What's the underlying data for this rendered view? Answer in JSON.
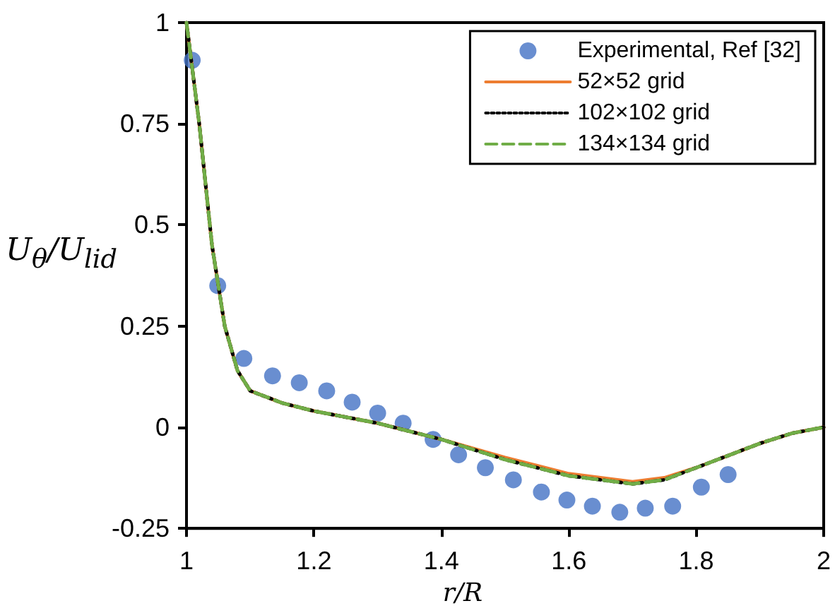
{
  "chart_data": {
    "type": "line",
    "xlabel": "r/R",
    "ylabel": "U$_{θ}$/U$_{lid}$",
    "xlim": [
      1,
      2
    ],
    "xticks": [
      1,
      1.2,
      1.4,
      1.6,
      1.8,
      2
    ],
    "ylim": [
      -0.25,
      1
    ],
    "yticks": [
      -0.25,
      0,
      0.25,
      0.5,
      0.75,
      1
    ],
    "grid": false,
    "legend": "top right",
    "series": [
      {
        "name": "Experimental, Ref [32]",
        "type": "scatter",
        "marker": "circle",
        "color": "#4472c4",
        "x": [
          1.009,
          1.049,
          1.09,
          1.135,
          1.177,
          1.22,
          1.26,
          1.3,
          1.34,
          1.387,
          1.427,
          1.469,
          1.513,
          1.557,
          1.597,
          1.637,
          1.68,
          1.72,
          1.763,
          1.808,
          1.85
        ],
        "values": [
          0.907,
          0.35,
          0.17,
          0.127,
          0.11,
          0.09,
          0.062,
          0.035,
          0.01,
          -0.03,
          -0.068,
          -0.1,
          -0.13,
          -0.16,
          -0.18,
          -0.195,
          -0.21,
          -0.2,
          -0.195,
          -0.148,
          -0.117
        ]
      },
      {
        "name": "52×52 grid",
        "marker": "none",
        "line_style": "solid",
        "color": "#ed7d31",
        "x": [
          1,
          1.02,
          1.04,
          1.06,
          1.08,
          1.1,
          1.15,
          1.2,
          1.3,
          1.4,
          1.5,
          1.6,
          1.7,
          1.75,
          1.8,
          1.85,
          1.9,
          1.95,
          2
        ],
        "values": [
          1,
          0.75,
          0.45,
          0.25,
          0.14,
          0.09,
          0.06,
          0.04,
          0.01,
          -0.03,
          -0.075,
          -0.115,
          -0.135,
          -0.125,
          -0.1,
          -0.07,
          -0.04,
          -0.015,
          0
        ]
      },
      {
        "name": "102×102 grid",
        "marker": "none",
        "line_style": "dotted",
        "color": "#000000",
        "x": [
          1,
          1.02,
          1.04,
          1.06,
          1.08,
          1.1,
          1.15,
          1.2,
          1.3,
          1.4,
          1.5,
          1.6,
          1.7,
          1.75,
          1.8,
          1.85,
          1.9,
          1.95,
          2
        ],
        "values": [
          1,
          0.75,
          0.45,
          0.25,
          0.14,
          0.09,
          0.06,
          0.04,
          0.01,
          -0.03,
          -0.08,
          -0.12,
          -0.14,
          -0.13,
          -0.1,
          -0.07,
          -0.04,
          -0.015,
          0
        ]
      },
      {
        "name": "134×134 grid",
        "marker": "none",
        "line_style": "dashed",
        "color": "#70ad47",
        "x": [
          1,
          1.02,
          1.04,
          1.06,
          1.08,
          1.1,
          1.15,
          1.2,
          1.3,
          1.4,
          1.5,
          1.6,
          1.7,
          1.75,
          1.8,
          1.85,
          1.9,
          1.95,
          2
        ],
        "values": [
          1,
          0.75,
          0.45,
          0.25,
          0.14,
          0.09,
          0.06,
          0.04,
          0.01,
          -0.03,
          -0.08,
          -0.12,
          -0.14,
          -0.13,
          -0.1,
          -0.07,
          -0.04,
          -0.015,
          0
        ]
      }
    ]
  }
}
